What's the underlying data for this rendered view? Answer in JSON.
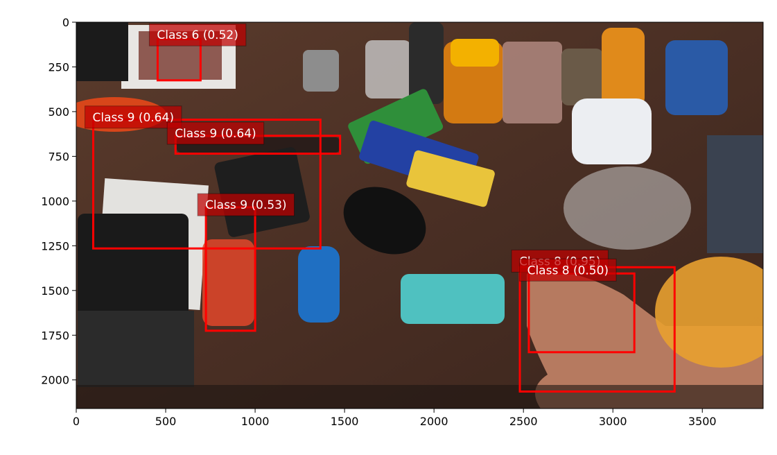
{
  "image": {
    "width": 3840,
    "height": 2160,
    "description_icons": [
      "desk-photo"
    ]
  },
  "axes": {
    "x_ticks": [
      0,
      500,
      1000,
      1500,
      2000,
      2500,
      3000,
      3500
    ],
    "y_ticks": [
      0,
      250,
      500,
      750,
      1000,
      1250,
      1500,
      1750,
      2000
    ],
    "xlim": [
      0,
      3840
    ],
    "ylim": [
      2160,
      0
    ]
  },
  "detections": [
    {
      "label": "Class 6 (0.52)",
      "x1": 455,
      "y1": 95,
      "x2": 695,
      "y2": 325,
      "label_x": 420,
      "label_y": 55
    },
    {
      "label": "Class 9 (0.64)",
      "x1": 95,
      "y1": 545,
      "x2": 1365,
      "y2": 1265,
      "label_x": 60,
      "label_y": 515
    },
    {
      "label": "Class 9 (0.64)",
      "x1": 555,
      "y1": 635,
      "x2": 1475,
      "y2": 735,
      "label_x": 520,
      "label_y": 605
    },
    {
      "label": "Class 9 (0.53)",
      "x1": 725,
      "y1": 1035,
      "x2": 1000,
      "y2": 1725,
      "label_x": 690,
      "label_y": 1005
    },
    {
      "label": "Class 8 (0.95)",
      "x1": 2480,
      "y1": 1370,
      "x2": 3345,
      "y2": 2065,
      "label_x": 2445,
      "label_y": 1320
    },
    {
      "label": "Class 8 (0.50)",
      "x1": 2530,
      "y1": 1405,
      "x2": 3120,
      "y2": 1845,
      "label_x": 2490,
      "label_y": 1370
    }
  ],
  "colors": {
    "box": "#ff0000",
    "label_bg": "#c00000"
  }
}
